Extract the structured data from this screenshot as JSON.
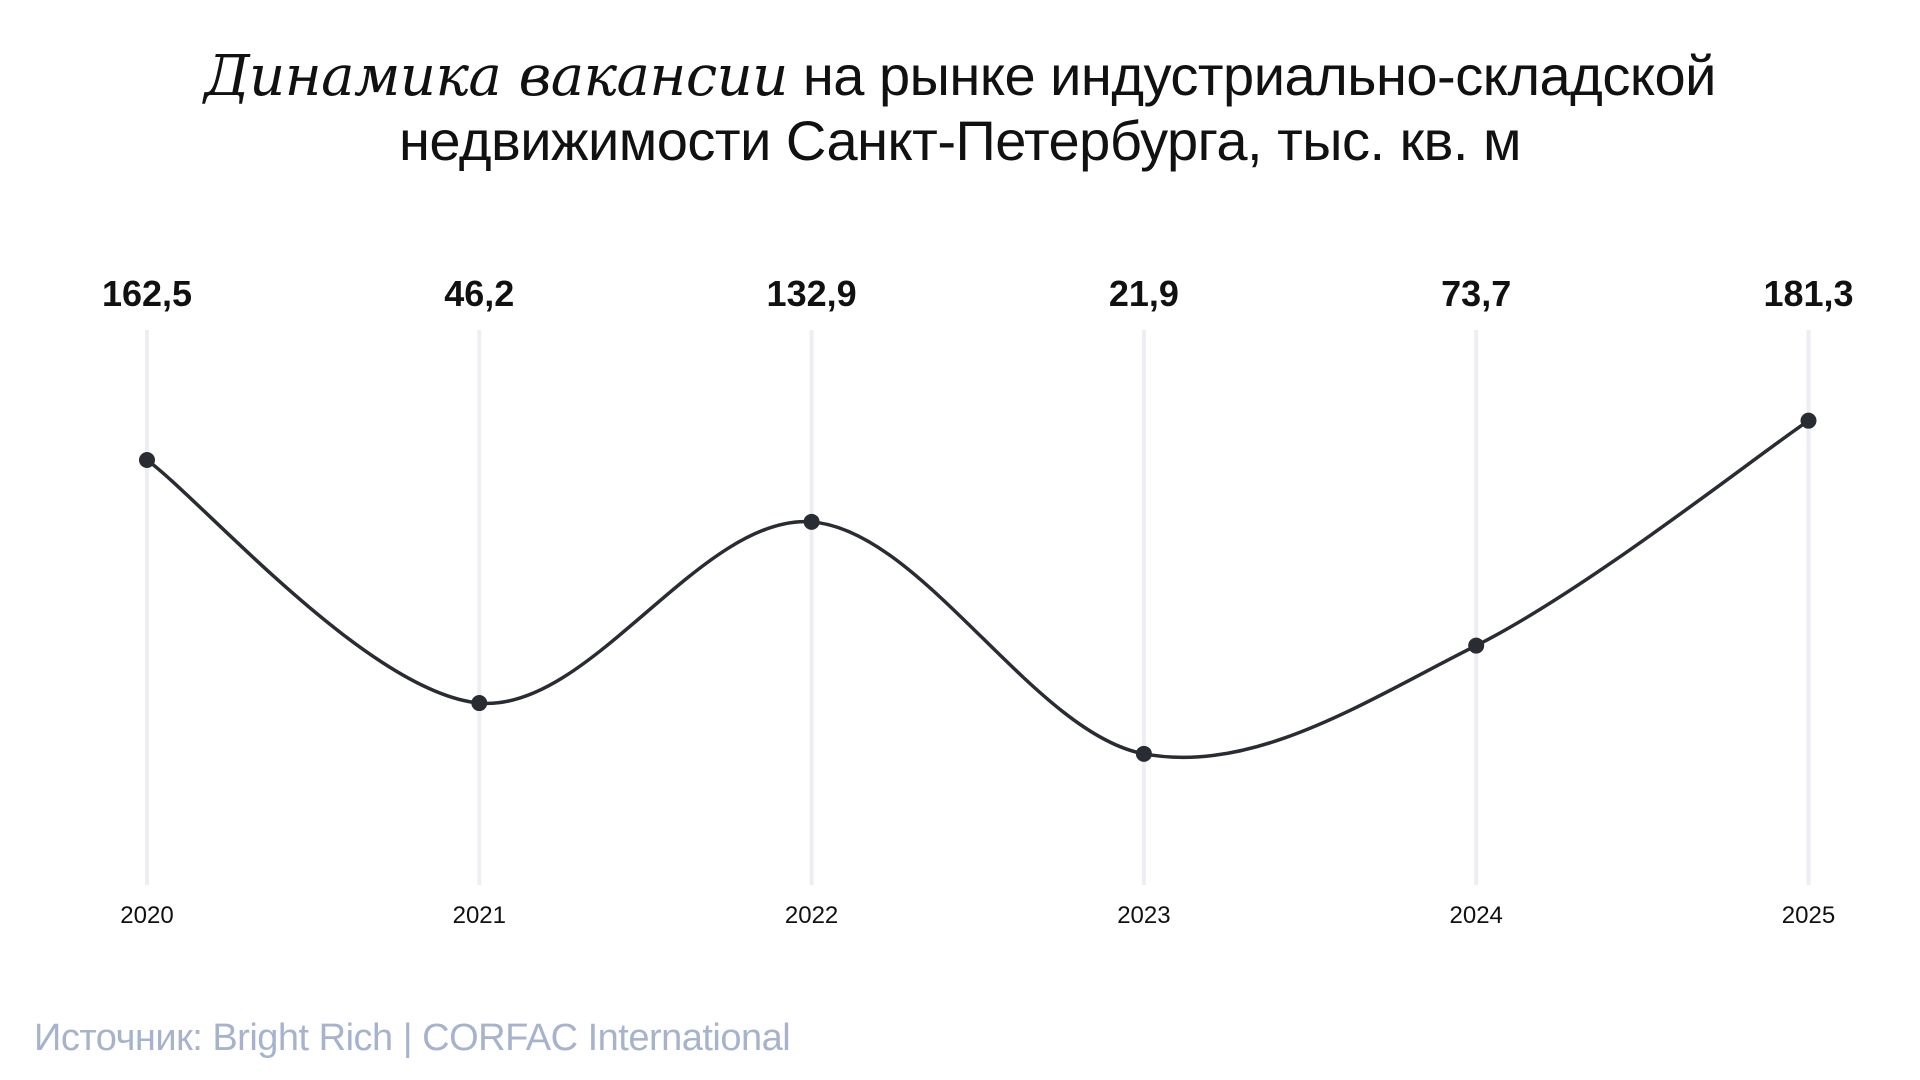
{
  "title": {
    "emphasis": "Динамика вакансии",
    "line1_rest": " на рынке индустриально-складской",
    "line2": "недвижимости Санкт-Петербурга, тыс. кв. м"
  },
  "source": "Источник: Bright Rich | CORFAC International",
  "colors": {
    "line": "#2a2c33",
    "marker": "#2a2c33",
    "gridline": "#eceef4",
    "source_text": "#a7b3cc",
    "text": "#111111"
  },
  "chart_data": {
    "type": "line",
    "categories": [
      "2020",
      "2021",
      "2022",
      "2023",
      "2024",
      "2025"
    ],
    "values": [
      162.5,
      46.2,
      132.9,
      21.9,
      73.7,
      181.3
    ],
    "value_labels": [
      "162,5",
      "46,2",
      "132,9",
      "21,9",
      "73,7",
      "181,3"
    ],
    "smooth": true,
    "grid": "vertical",
    "legend": "none",
    "xlabel": "",
    "ylabel": ""
  }
}
